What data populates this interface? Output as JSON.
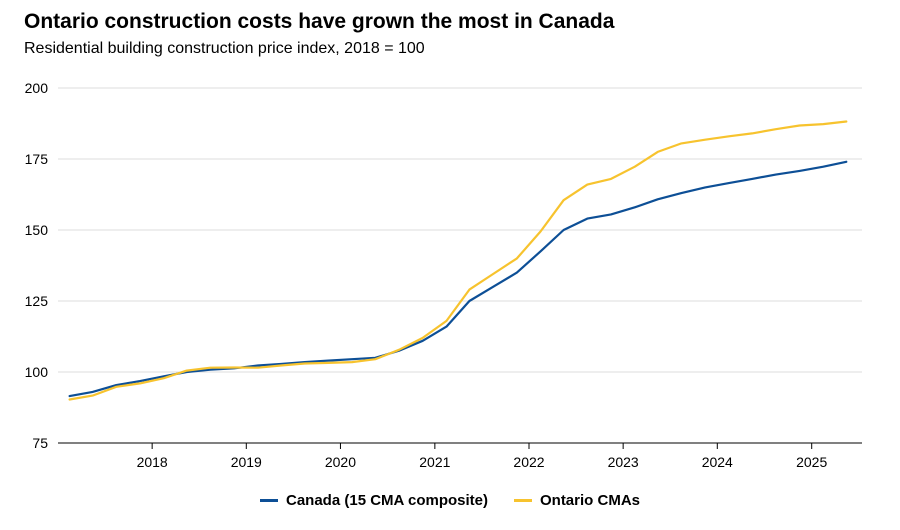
{
  "title": "Ontario construction costs have grown the most in Canada",
  "subtitle": "Residential building construction price index, 2018 = 100",
  "chart_data": {
    "type": "line",
    "xlim": [
      "2017-01-01",
      "2025-07-15"
    ],
    "ylim": [
      75,
      200
    ],
    "yticks": [
      75,
      100,
      125,
      150,
      175,
      200
    ],
    "xticks": [
      {
        "date": "2018-01-01",
        "label": "2018"
      },
      {
        "date": "2019-01-01",
        "label": "2019"
      },
      {
        "date": "2020-01-01",
        "label": "2020"
      },
      {
        "date": "2021-01-01",
        "label": "2021"
      },
      {
        "date": "2022-01-01",
        "label": "2022"
      },
      {
        "date": "2023-01-01",
        "label": "2023"
      },
      {
        "date": "2024-01-01",
        "label": "2024"
      },
      {
        "date": "2025-01-01",
        "label": "2025"
      }
    ],
    "grid": "horizontal",
    "legend_position": "bottom",
    "series": [
      {
        "name": "Canada (15 CMA composite)",
        "color": "#0d4f96",
        "points": [
          [
            "2017-02-15",
            91.5
          ],
          [
            "2017-05-15",
            93.0
          ],
          [
            "2017-08-15",
            95.4
          ],
          [
            "2017-11-15",
            96.8
          ],
          [
            "2018-02-15",
            98.5
          ],
          [
            "2018-05-15",
            100.0
          ],
          [
            "2018-08-15",
            100.8
          ],
          [
            "2018-11-15",
            101.3
          ],
          [
            "2019-02-15",
            102.3
          ],
          [
            "2019-05-15",
            102.8
          ],
          [
            "2019-08-15",
            103.5
          ],
          [
            "2019-11-15",
            104.0
          ],
          [
            "2020-02-15",
            104.5
          ],
          [
            "2020-05-15",
            105.0
          ],
          [
            "2020-08-15",
            107.5
          ],
          [
            "2020-11-15",
            111.0
          ],
          [
            "2021-02-15",
            116.0
          ],
          [
            "2021-05-15",
            125.0
          ],
          [
            "2021-08-15",
            130.0
          ],
          [
            "2021-11-15",
            135.0
          ],
          [
            "2022-02-15",
            142.5
          ],
          [
            "2022-05-15",
            150.0
          ],
          [
            "2022-08-15",
            154.0
          ],
          [
            "2022-11-15",
            155.5
          ],
          [
            "2023-02-15",
            158.0
          ],
          [
            "2023-05-15",
            160.8
          ],
          [
            "2023-08-15",
            163.0
          ],
          [
            "2023-11-15",
            165.0
          ],
          [
            "2024-02-15",
            166.5
          ],
          [
            "2024-05-15",
            168.0
          ],
          [
            "2024-08-15",
            169.5
          ],
          [
            "2024-11-15",
            170.8
          ],
          [
            "2025-02-15",
            172.3
          ],
          [
            "2025-05-15",
            174.0
          ]
        ]
      },
      {
        "name": "Ontario CMAs",
        "color": "#f7c32e",
        "points": [
          [
            "2017-02-15",
            90.3
          ],
          [
            "2017-05-15",
            91.7
          ],
          [
            "2017-08-15",
            94.8
          ],
          [
            "2017-11-15",
            96.0
          ],
          [
            "2018-02-15",
            97.8
          ],
          [
            "2018-05-15",
            100.5
          ],
          [
            "2018-08-15",
            101.5
          ],
          [
            "2018-11-15",
            101.6
          ],
          [
            "2019-02-15",
            101.5
          ],
          [
            "2019-05-15",
            102.3
          ],
          [
            "2019-08-15",
            103.0
          ],
          [
            "2019-11-15",
            103.2
          ],
          [
            "2020-02-15",
            103.5
          ],
          [
            "2020-05-15",
            104.5
          ],
          [
            "2020-08-15",
            107.8
          ],
          [
            "2020-11-15",
            112.0
          ],
          [
            "2021-02-15",
            118.0
          ],
          [
            "2021-05-15",
            129.0
          ],
          [
            "2021-08-15",
            134.5
          ],
          [
            "2021-11-15",
            140.0
          ],
          [
            "2022-02-15",
            149.5
          ],
          [
            "2022-05-15",
            160.5
          ],
          [
            "2022-08-15",
            166.0
          ],
          [
            "2022-11-15",
            168.0
          ],
          [
            "2023-02-15",
            172.3
          ],
          [
            "2023-05-15",
            177.5
          ],
          [
            "2023-08-15",
            180.5
          ],
          [
            "2023-11-15",
            181.8
          ],
          [
            "2024-02-15",
            183.0
          ],
          [
            "2024-05-15",
            184.0
          ],
          [
            "2024-08-15",
            185.5
          ],
          [
            "2024-11-15",
            186.8
          ],
          [
            "2025-02-15",
            187.3
          ],
          [
            "2025-05-15",
            188.2
          ]
        ]
      }
    ]
  }
}
